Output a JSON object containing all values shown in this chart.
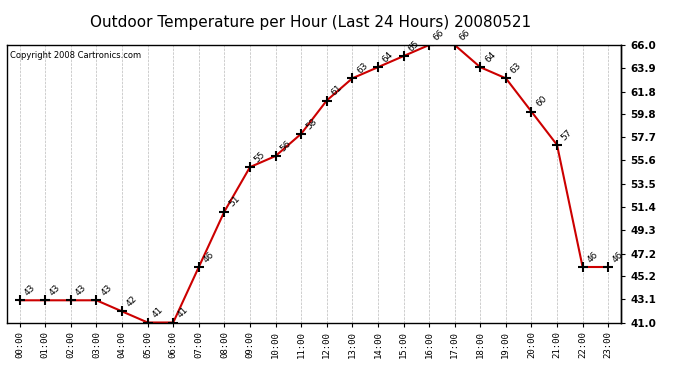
{
  "title": "Outdoor Temperature per Hour (Last 24 Hours) 20080521",
  "copyright": "Copyright 2008 Cartronics.com",
  "hours": [
    "00:00",
    "01:00",
    "02:00",
    "03:00",
    "04:00",
    "05:00",
    "06:00",
    "07:00",
    "08:00",
    "09:00",
    "10:00",
    "11:00",
    "12:00",
    "13:00",
    "14:00",
    "15:00",
    "16:00",
    "17:00",
    "18:00",
    "19:00",
    "20:00",
    "21:00",
    "22:00",
    "23:00"
  ],
  "temps": [
    43,
    43,
    43,
    43,
    42,
    41,
    41,
    46,
    51,
    55,
    56,
    58,
    61,
    63,
    64,
    65,
    66,
    66,
    64,
    63,
    60,
    57,
    46,
    46
  ],
  "line_color": "#cc0000",
  "marker": "+",
  "marker_color": "black",
  "grid_color": "#bbbbbb",
  "background_color": "#ffffff",
  "ylim_min": 41.0,
  "ylim_max": 66.0,
  "yticks_right": [
    41.0,
    43.1,
    45.2,
    47.2,
    49.3,
    51.4,
    53.5,
    55.6,
    57.7,
    59.8,
    61.8,
    63.9,
    66.0
  ],
  "label_fontsize": 6.5,
  "title_fontsize": 11,
  "copyright_fontsize": 6
}
